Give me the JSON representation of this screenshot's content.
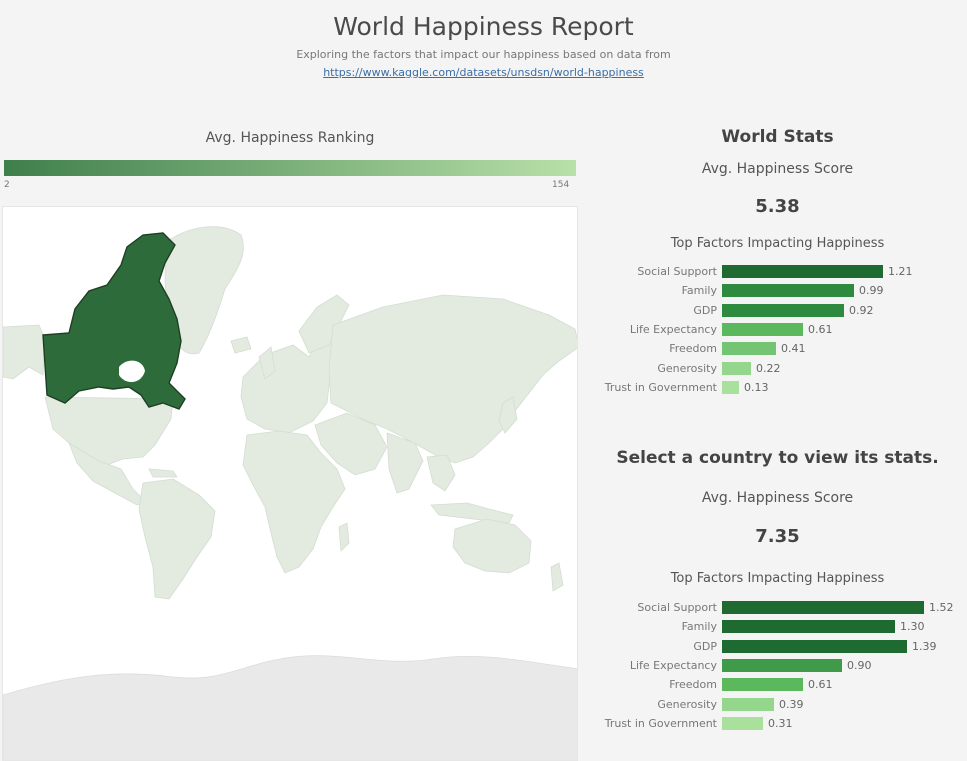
{
  "header": {
    "title": "World Happiness Report",
    "subtitle": "Exploring the factors that impact our happiness based on data from",
    "link": "https://www.kaggle.com/datasets/unsdsn/world-happiness"
  },
  "legend": {
    "title": "Avg. Happiness Ranking",
    "min": "2",
    "max": "154",
    "colors": [
      "#3f7f4c",
      "#b8e0a8"
    ]
  },
  "map": {
    "highlighted_country": "Canada",
    "highlight_color": "#2e6b3b",
    "land_color": "#e3ebe1"
  },
  "world": {
    "heading": "World Stats",
    "score_label": "Avg. Happiness Score",
    "score": "5.38",
    "factors_title": "Top Factors Impacting Happiness",
    "factors": [
      {
        "label": "Social Support",
        "value": "1.21",
        "color": "#1f6a31"
      },
      {
        "label": "Family",
        "value": "0.99",
        "color": "#2d8a3e"
      },
      {
        "label": "GDP",
        "value": "0.92",
        "color": "#2d8a3e"
      },
      {
        "label": "Life Expectancy",
        "value": "0.61",
        "color": "#5cb85c"
      },
      {
        "label": "Freedom",
        "value": "0.41",
        "color": "#73c573"
      },
      {
        "label": "Generosity",
        "value": "0.22",
        "color": "#94d68b"
      },
      {
        "label": "Trust in Government",
        "value": "0.13",
        "color": "#a9e09b"
      }
    ]
  },
  "country": {
    "heading": "Select a country to view its stats.",
    "score_label": "Avg. Happiness Score",
    "score": "7.35",
    "factors_title": "Top Factors Impacting Happiness",
    "factors": [
      {
        "label": "Social Support",
        "value": "1.52",
        "color": "#1f6a31"
      },
      {
        "label": "Family",
        "value": "1.30",
        "color": "#1f6a31"
      },
      {
        "label": "GDP",
        "value": "1.39",
        "color": "#1f6a31"
      },
      {
        "label": "Life Expectancy",
        "value": "0.90",
        "color": "#3f9a4a"
      },
      {
        "label": "Freedom",
        "value": "0.61",
        "color": "#5cb85c"
      },
      {
        "label": "Generosity",
        "value": "0.39",
        "color": "#94d68b"
      },
      {
        "label": "Trust in Government",
        "value": "0.31",
        "color": "#a9e09b"
      }
    ]
  },
  "scale_max": 1.52
}
